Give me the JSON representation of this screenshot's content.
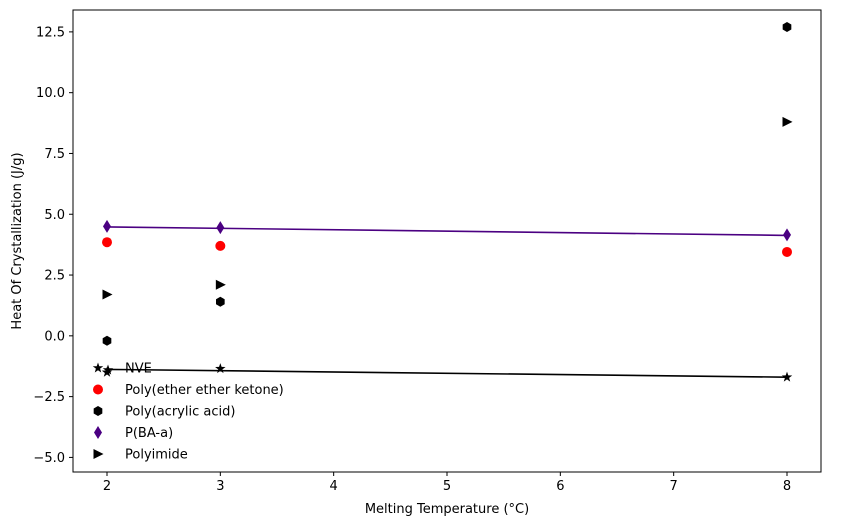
{
  "chart_data": {
    "type": "scatter",
    "title": "",
    "xlabel": "Melting Temperature (°C)",
    "ylabel": "Heat Of Crystallization (J/g)",
    "xlim": [
      1.7,
      8.3
    ],
    "ylim": [
      -5.6,
      13.4
    ],
    "grid": false,
    "legend_position": "lower-left",
    "x_ticks": [
      2,
      3,
      4,
      5,
      6,
      7,
      8
    ],
    "x_tick_labels": [
      "2",
      "3",
      "4",
      "5",
      "6",
      "7",
      "8"
    ],
    "y_ticks": [
      -5.0,
      -2.5,
      0.0,
      2.5,
      5.0,
      7.5,
      10.0,
      12.5
    ],
    "y_tick_labels": [
      "−5.0",
      "−2.5",
      "0.0",
      "2.5",
      "5.0",
      "7.5",
      "10.0",
      "12.5"
    ],
    "series": [
      {
        "name": "NVE",
        "marker": "star",
        "color": "#000000",
        "x": [
          2,
          3,
          8
        ],
        "y": [
          -1.5,
          -1.35,
          -1.7
        ]
      },
      {
        "name": "Poly(ether ether ketone)",
        "marker": "circle",
        "color": "#ff0000",
        "x": [
          2,
          3,
          8
        ],
        "y": [
          3.85,
          3.7,
          3.45
        ]
      },
      {
        "name": "Poly(acrylic acid)",
        "marker": "hexagon",
        "color": "#000000",
        "x": [
          2,
          3,
          8
        ],
        "y": [
          -0.2,
          1.4,
          12.7
        ]
      },
      {
        "name": "P(BA-a)",
        "marker": "thin-diamond",
        "color": "#4b0082",
        "x": [
          2,
          3,
          8
        ],
        "y": [
          4.5,
          4.45,
          4.15
        ]
      },
      {
        "name": "Polyimide",
        "marker": "triangle-right",
        "color": "#000000",
        "x": [
          2,
          3,
          8
        ],
        "y": [
          1.7,
          2.1,
          8.8
        ]
      }
    ],
    "fit_lines": [
      {
        "series": "NVE",
        "color": "#000000",
        "x": [
          2,
          8
        ],
        "y": [
          -1.38,
          -1.7
        ]
      },
      {
        "series": "P(BA-a)",
        "color": "#4b0082",
        "x": [
          2,
          8
        ],
        "y": [
          4.48,
          4.13
        ]
      }
    ]
  }
}
